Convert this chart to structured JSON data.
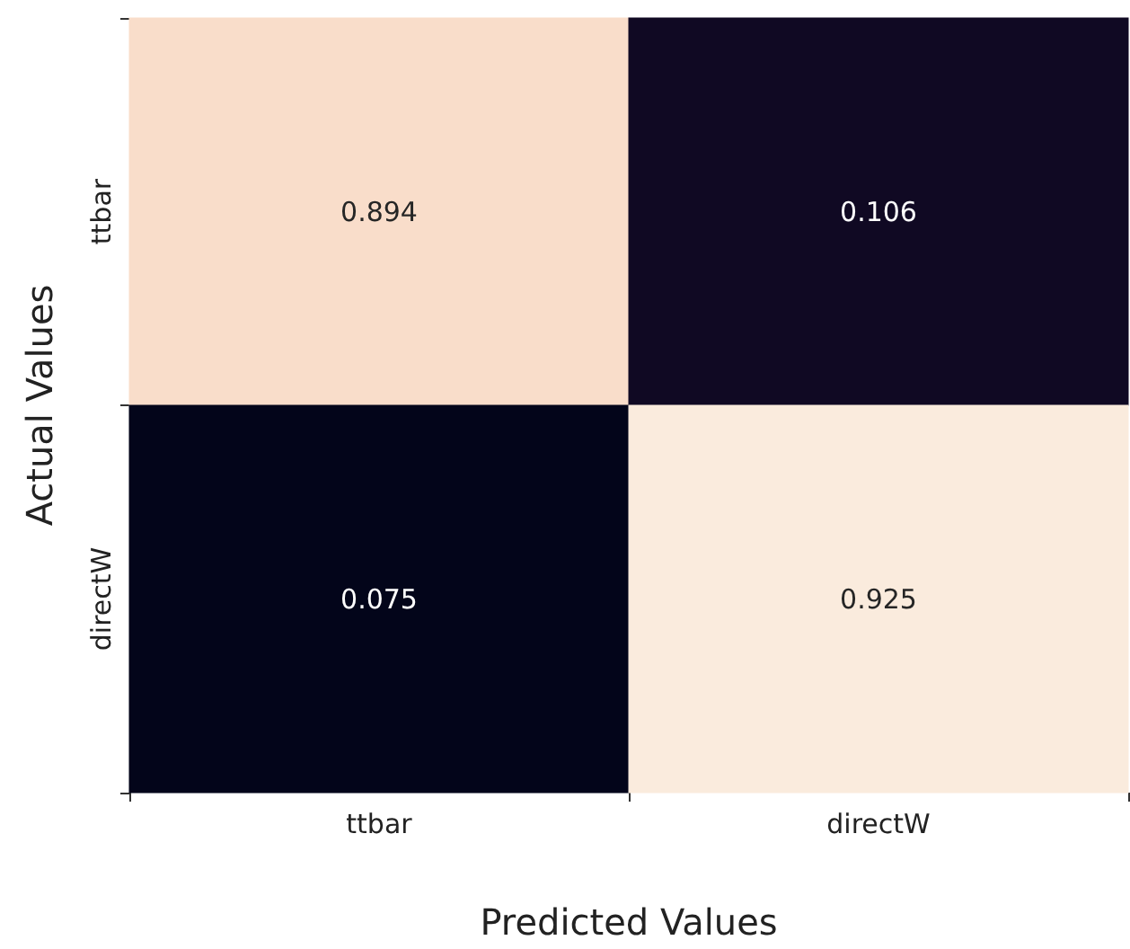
{
  "chart_data": {
    "type": "heatmap",
    "xlabel": "Predicted Values",
    "ylabel": "Actual Values",
    "categories": [
      "ttbar",
      "directW"
    ],
    "y_categories": [
      "ttbar",
      "directW"
    ],
    "cells": [
      [
        0.894,
        0.106
      ],
      [
        0.075,
        0.925
      ]
    ],
    "data_labels": true
  }
}
